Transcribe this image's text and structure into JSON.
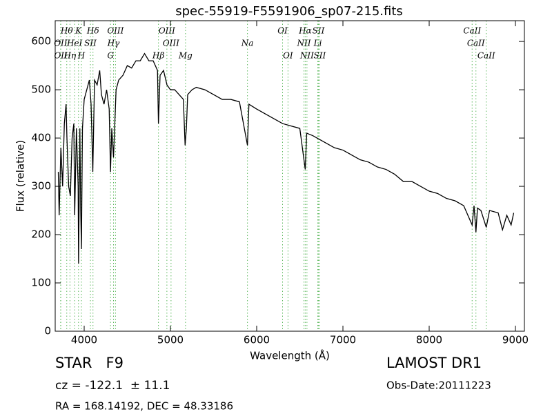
{
  "chart_data": {
    "type": "line",
    "title": "spec-55919-F5591906_sp07-215.fits",
    "x_label": "Wavelength (Å)",
    "y_label": "Flux (relative)",
    "xlim": [
      3664,
      9104
    ],
    "ylim": [
      0,
      643
    ],
    "xticks": [
      4000,
      5000,
      6000,
      7000,
      8000,
      9000
    ],
    "yticks": [
      0,
      100,
      200,
      300,
      400,
      500,
      600
    ],
    "color": "#000000",
    "line_color": "#5cb85c",
    "x": [
      3700,
      3710,
      3730,
      3750,
      3770,
      3790,
      3800,
      3820,
      3840,
      3860,
      3880,
      3890,
      3910,
      3930,
      3935,
      3950,
      3960,
      3968,
      3980,
      4000,
      4030,
      4060,
      4080,
      4100,
      4120,
      4150,
      4180,
      4200,
      4230,
      4260,
      4290,
      4305,
      4320,
      4340,
      4370,
      4400,
      4450,
      4500,
      4550,
      4600,
      4650,
      4700,
      4750,
      4800,
      4850,
      4861,
      4880,
      4920,
      4960,
      5000,
      5050,
      5100,
      5150,
      5170,
      5185,
      5200,
      5250,
      5300,
      5400,
      5500,
      5600,
      5700,
      5800,
      5893,
      5910,
      6000,
      6100,
      6200,
      6300,
      6400,
      6500,
      6563,
      6580,
      6650,
      6700,
      6800,
      6900,
      7000,
      7100,
      7200,
      7300,
      7400,
      7500,
      7600,
      7700,
      7800,
      7900,
      8000,
      8100,
      8200,
      8300,
      8400,
      8498,
      8520,
      8542,
      8560,
      8600,
      8662,
      8700,
      8800,
      8850,
      8900,
      8950,
      8980
    ],
    "values": [
      330,
      240,
      380,
      300,
      430,
      470,
      400,
      300,
      280,
      400,
      430,
      240,
      420,
      300,
      140,
      420,
      250,
      170,
      420,
      480,
      500,
      520,
      470,
      330,
      520,
      510,
      540,
      490,
      470,
      500,
      460,
      330,
      420,
      360,
      500,
      520,
      530,
      550,
      545,
      560,
      560,
      575,
      560,
      560,
      540,
      430,
      530,
      540,
      510,
      500,
      500,
      490,
      480,
      385,
      420,
      490,
      500,
      505,
      500,
      490,
      480,
      480,
      475,
      385,
      470,
      460,
      450,
      440,
      430,
      425,
      420,
      335,
      410,
      405,
      400,
      390,
      380,
      375,
      365,
      355,
      350,
      340,
      335,
      325,
      310,
      310,
      300,
      290,
      285,
      275,
      270,
      260,
      220,
      260,
      205,
      255,
      250,
      215,
      250,
      245,
      210,
      240,
      220,
      245
    ],
    "spectral_lines": [
      [
        {
          "label": "Hθ",
          "wavelength": 3798
        },
        {
          "label": "K",
          "wavelength": 3934
        },
        {
          "label": "Hδ",
          "wavelength": 4102
        },
        {
          "label": "OIII",
          "wavelength": 4363
        },
        {
          "label": "OIII",
          "wavelength": 4959
        },
        {
          "label": "OI",
          "wavelength": 6300
        },
        {
          "label": "Hα",
          "wavelength": 6563
        },
        {
          "label": "SII",
          "wavelength": 6716
        },
        {
          "label": "CaII",
          "wavelength": 8498
        }
      ],
      [
        {
          "label": "OII",
          "wavelength": 3727
        },
        {
          "label": "HeI",
          "wavelength": 3889
        },
        {
          "label": "SII",
          "wavelength": 4072
        },
        {
          "label": "Hγ",
          "wavelength": 4340
        },
        {
          "label": "OIII",
          "wavelength": 5007
        },
        {
          "label": "Na",
          "wavelength": 5893
        },
        {
          "label": "NII",
          "wavelength": 6548
        },
        {
          "label": "Li",
          "wavelength": 6708
        },
        {
          "label": "CaII",
          "wavelength": 8542
        }
      ],
      [
        {
          "label": "OII",
          "wavelength": 3729
        },
        {
          "label": "Hη",
          "wavelength": 3835
        },
        {
          "label": "H",
          "wavelength": 3968
        },
        {
          "label": "G",
          "wavelength": 4305
        },
        {
          "label": "Hβ",
          "wavelength": 4861
        },
        {
          "label": "Mg",
          "wavelength": 5175
        },
        {
          "label": "OI",
          "wavelength": 6363
        },
        {
          "label": "NII",
          "wavelength": 6583
        },
        {
          "label": "SII",
          "wavelength": 6731
        },
        {
          "label": "CaII",
          "wavelength": 8662
        }
      ]
    ],
    "object_class": "STAR   F9",
    "redshift": "cz = -122.1  ± 11.1",
    "coordinates": "RA = 168.14192, DEC = 48.33186",
    "survey": "LAMOST DR1",
    "obs_date": "Obs-Date:20111223"
  }
}
